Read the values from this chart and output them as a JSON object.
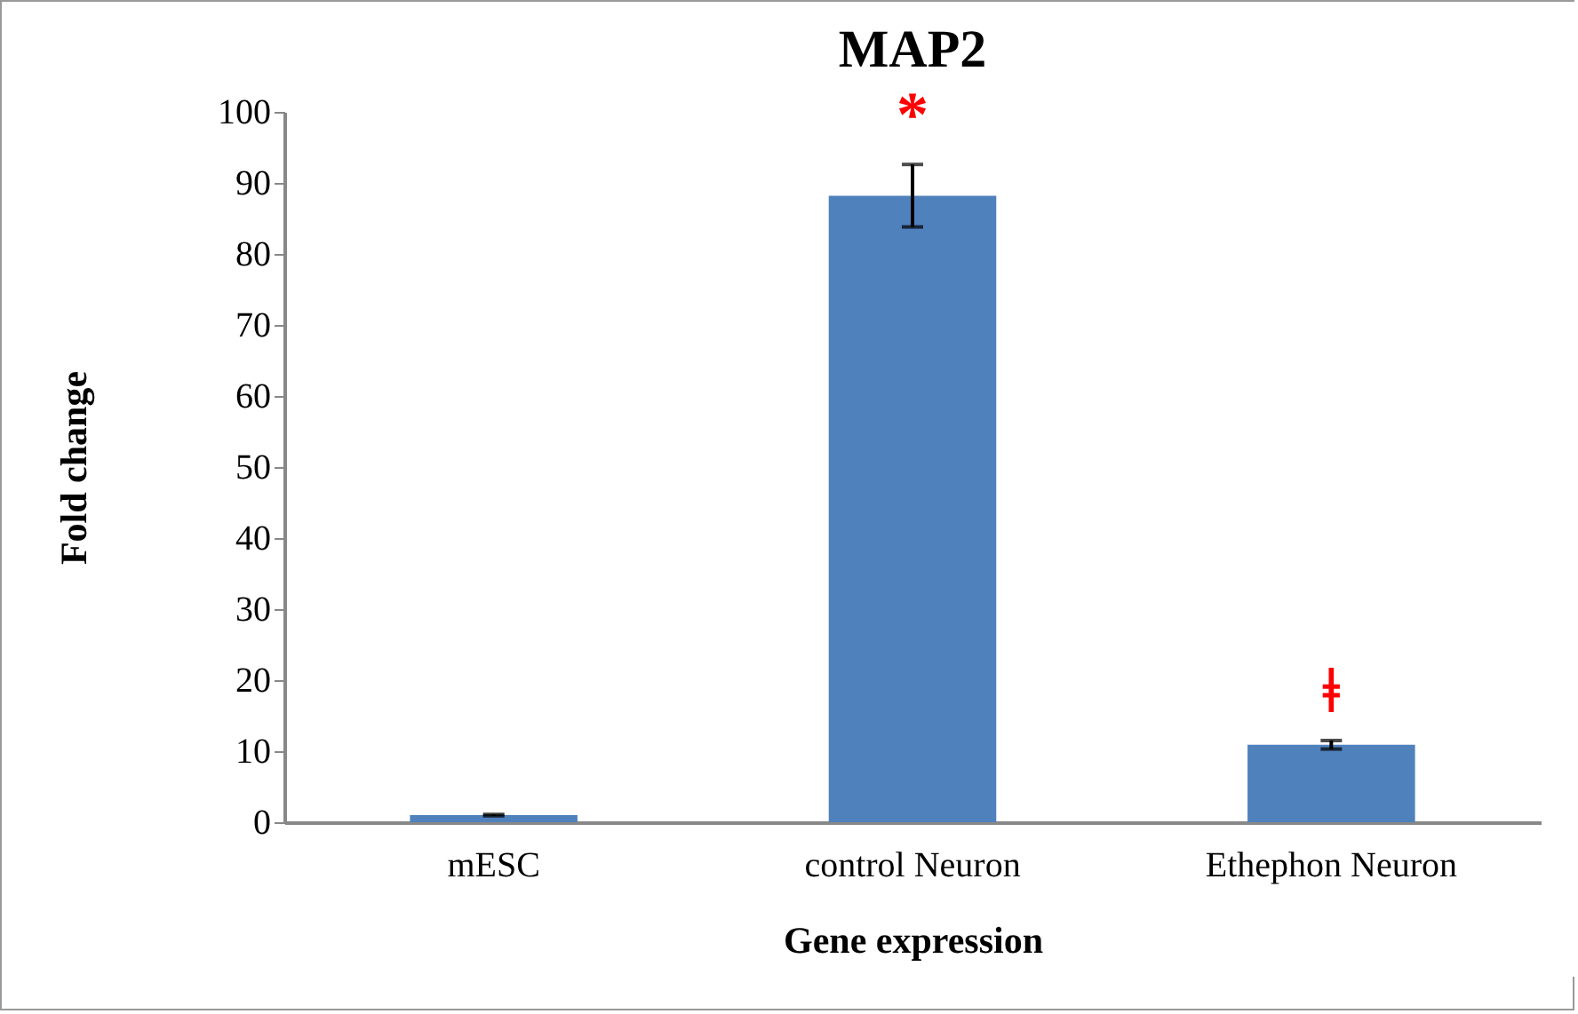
{
  "chart_data": {
    "type": "bar",
    "title": "MAP2",
    "xlabel": "Gene expression",
    "ylabel": "Fold change",
    "categories": [
      "mESC",
      "control Neuron",
      "Ethephon Neuron"
    ],
    "values": [
      1,
      88.2,
      10.9
    ],
    "color": "#4f81bd",
    "errors": [
      0.1,
      4.4,
      0.6
    ],
    "ylim": [
      0,
      100
    ],
    "yticks": [
      0,
      10,
      20,
      30,
      40,
      50,
      60,
      70,
      80,
      90,
      100
    ],
    "grid": false,
    "annotations": [
      "*",
      "ǂ"
    ]
  }
}
